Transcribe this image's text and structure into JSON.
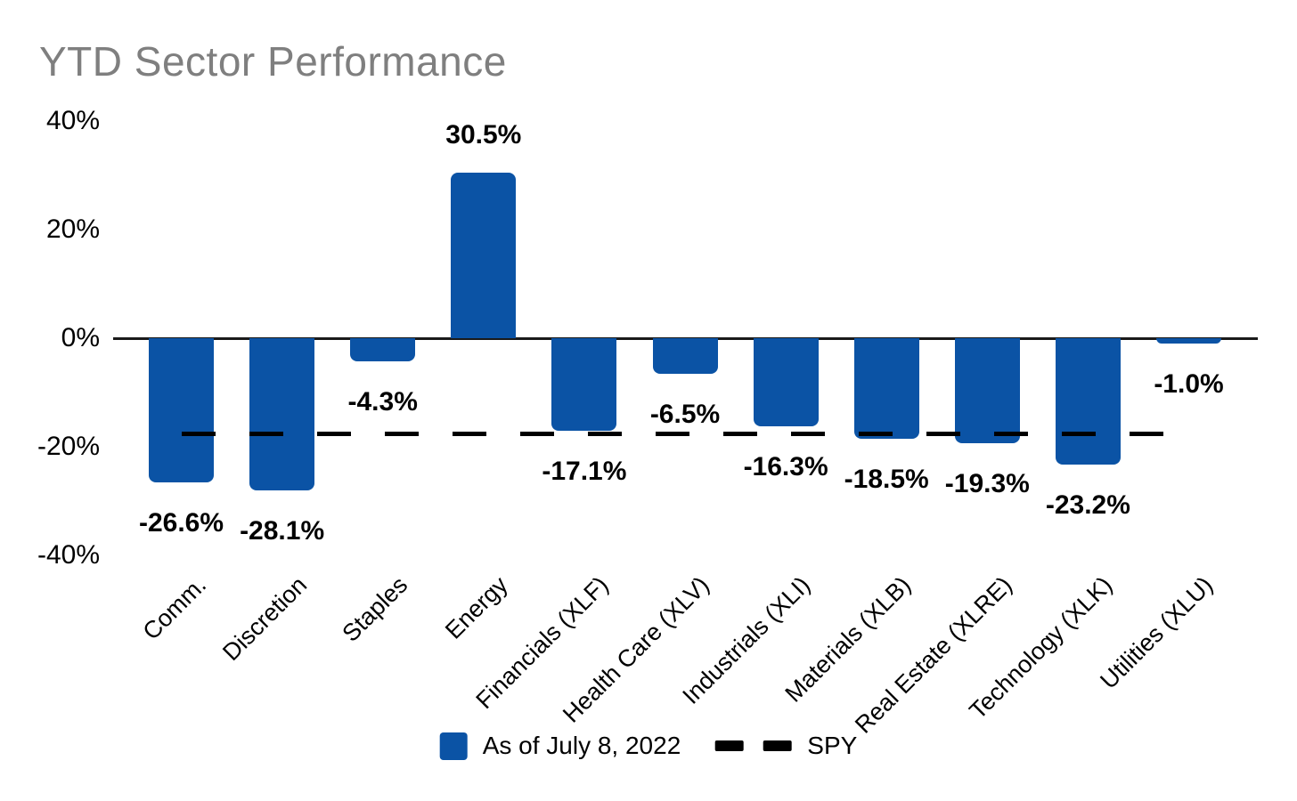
{
  "title": "YTD Sector Performance",
  "colors": {
    "bar": "#0b53a5",
    "title": "#7f7f7f",
    "axis": "#1a1a1a",
    "reference_line": "#000000",
    "label_text": "#000000"
  },
  "chart_data": {
    "type": "bar",
    "title": "YTD Sector Performance",
    "categories": [
      "Comm.",
      "Discretion",
      "Staples",
      "Energy",
      "Financials (XLF)",
      "Health Care (XLV)",
      "Industrials (XLI)",
      "Materials (XLB)",
      "Real Estate (XLRE)",
      "Technology (XLK)",
      "Utilities (XLU)"
    ],
    "values": [
      -26.6,
      -28.1,
      -4.3,
      30.5,
      -17.1,
      -6.5,
      -16.3,
      -18.5,
      -19.3,
      -23.2,
      -1.0
    ],
    "data_labels": [
      "-26.6%",
      "-28.1%",
      "-4.3%",
      "30.5%",
      "-17.1%",
      "-6.5%",
      "-16.3%",
      "-18.5%",
      "-19.3%",
      "-23.2%",
      "-1.0%"
    ],
    "series_name": "As of July 8, 2022",
    "reference_line": {
      "name": "SPY",
      "value": -17.7,
      "style": "dashed"
    },
    "y_axis": {
      "tick_labels": [
        "40%",
        "20%",
        "0%",
        "-20%",
        "-40%"
      ],
      "tick_values": [
        40,
        20,
        0,
        -20,
        -40
      ]
    },
    "ylim": [
      -40,
      40
    ],
    "grid": false,
    "legend_position": "bottom"
  },
  "legend": {
    "bar_label": "As of July 8, 2022",
    "line_label": "SPY"
  }
}
